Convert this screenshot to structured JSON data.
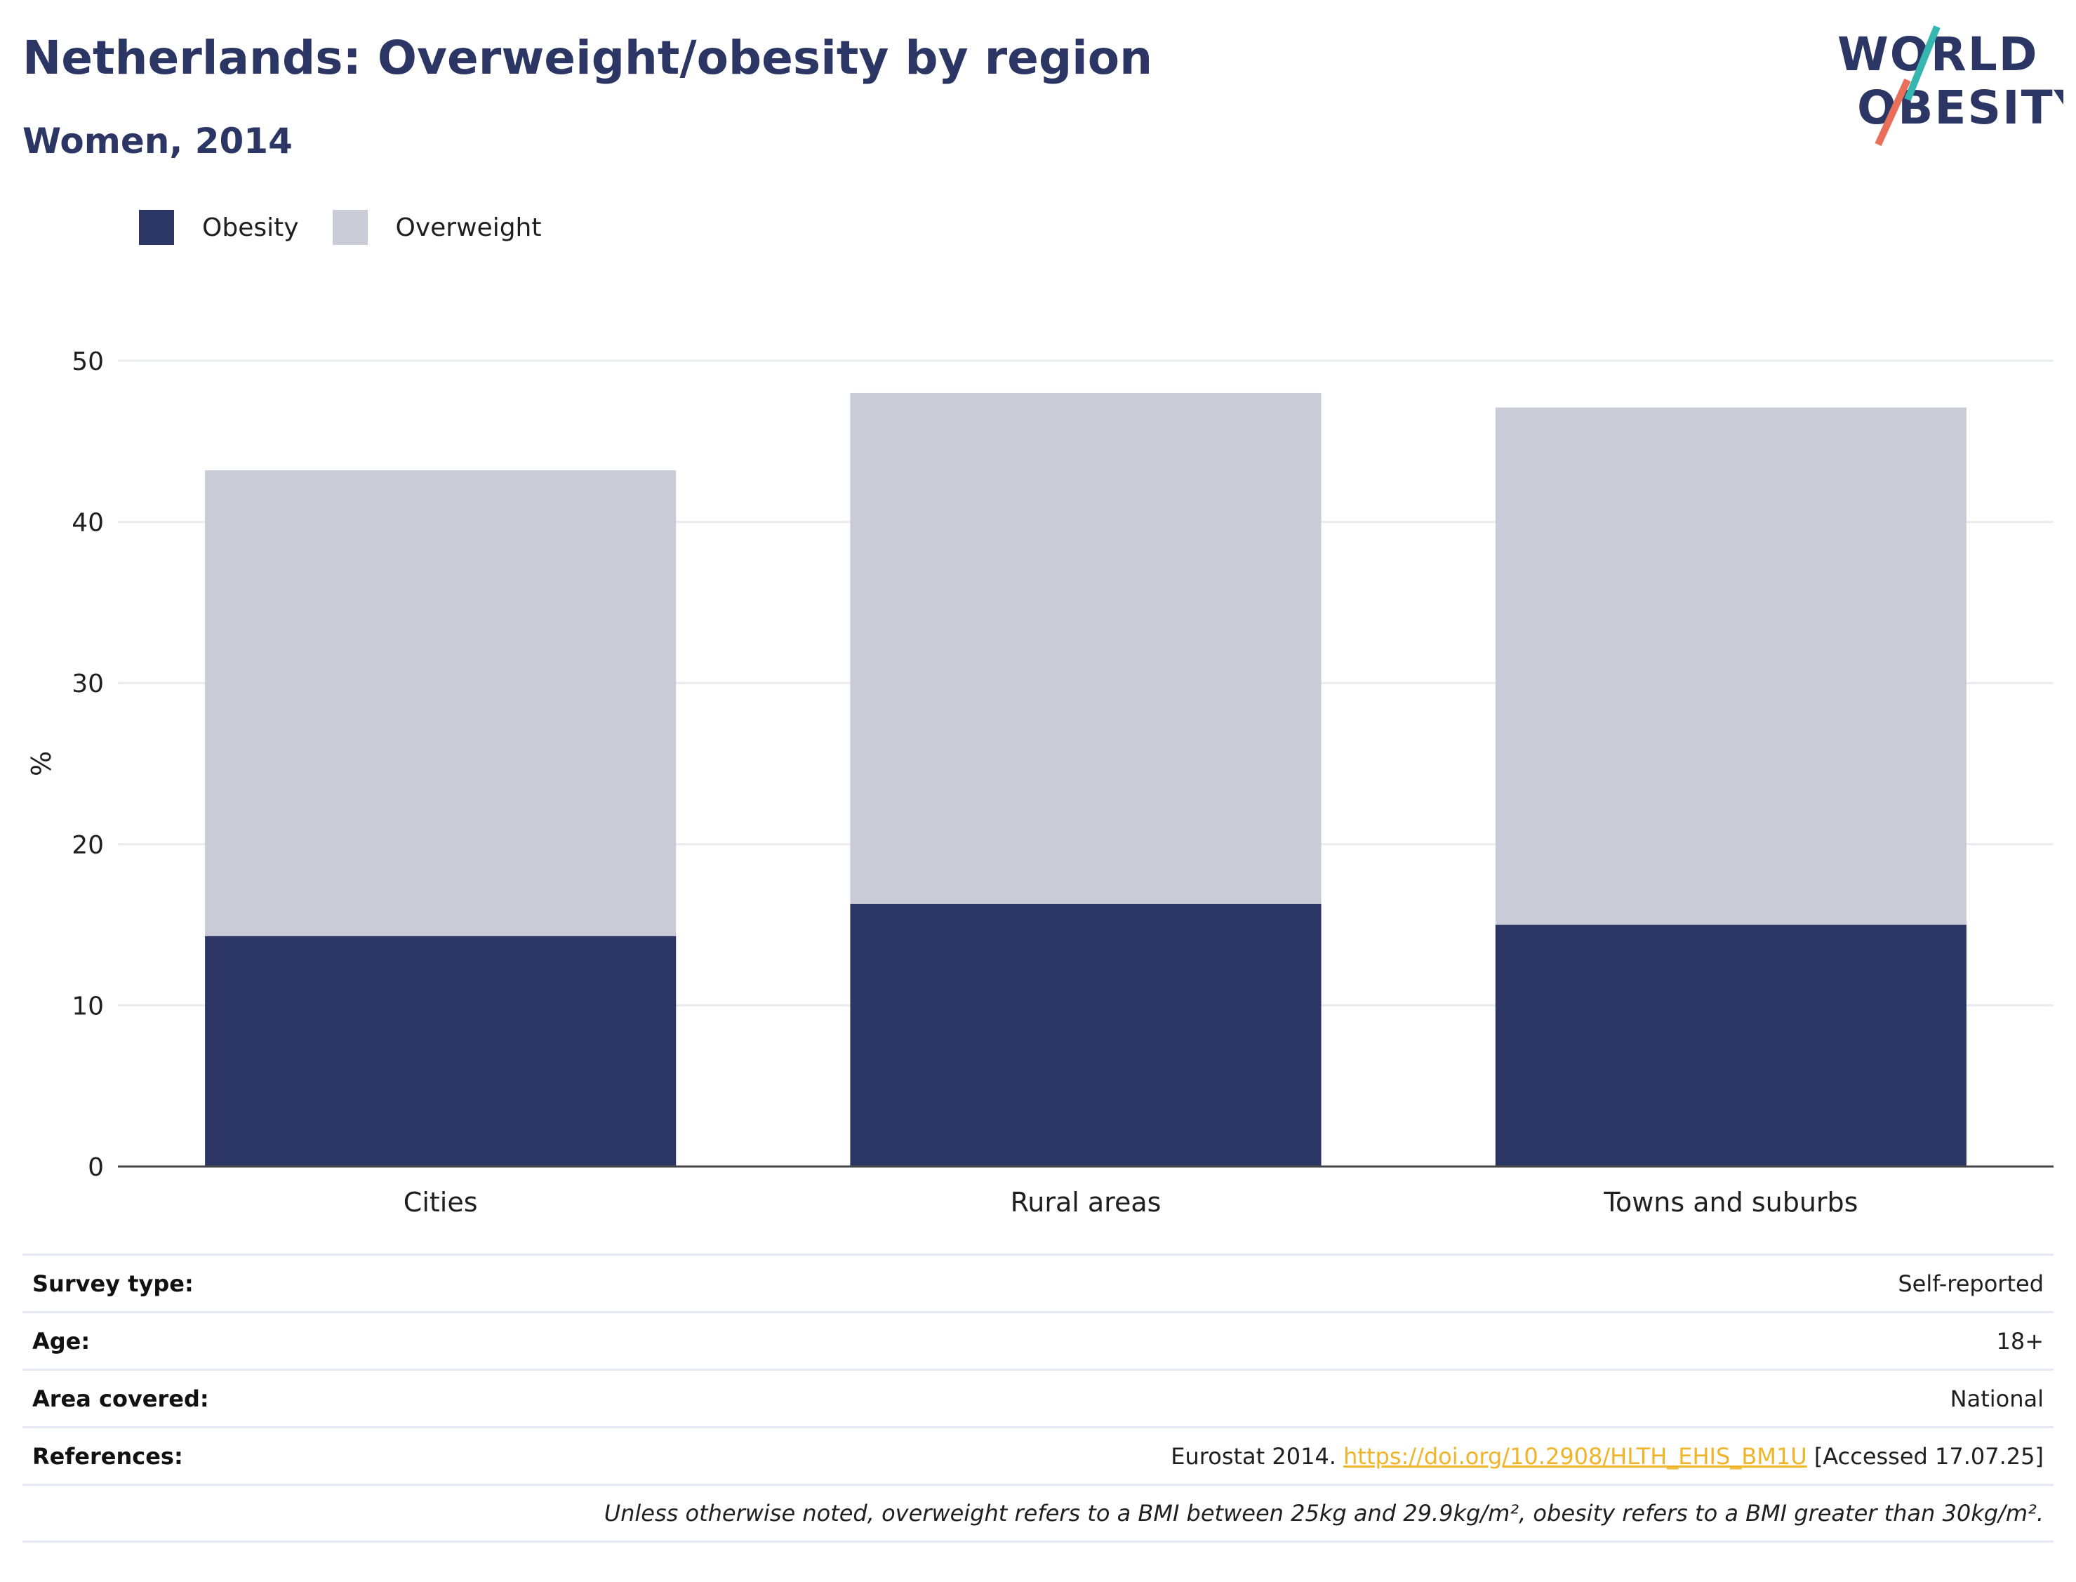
{
  "title": "Netherlands: Overweight/obesity by region",
  "subtitle": "Women, 2014",
  "logo": {
    "line1": "WORLD",
    "line2": "OBESITY"
  },
  "colors": {
    "obesity": "#2b3664",
    "overweight": "#c9cbd7",
    "title": "#2b3664",
    "link": "#f0b429",
    "logo_teal": "#36b6b0",
    "logo_coral": "#e8705a"
  },
  "legend": [
    {
      "label": "Obesity",
      "color": "#2b3664"
    },
    {
      "label": "Overweight",
      "color": "#c9cbd7"
    }
  ],
  "chart_data": {
    "type": "bar",
    "stacked": true,
    "categories": [
      "Cities",
      "Rural areas",
      "Towns and suburbs"
    ],
    "series": [
      {
        "name": "Obesity",
        "values": [
          14.3,
          16.3,
          15.0
        ],
        "color": "#2b3664"
      },
      {
        "name": "Overweight",
        "values": [
          28.9,
          31.7,
          32.1
        ],
        "color": "#c9cbd7"
      }
    ],
    "xlabel": "",
    "ylabel": "%",
    "ylim": [
      0,
      50
    ],
    "yticks": [
      "0",
      "10",
      "20",
      "30",
      "40",
      "50"
    ],
    "grid": true,
    "legend_position": "top-left"
  },
  "meta": {
    "survey_type": {
      "label": "Survey type:",
      "value": "Self-reported"
    },
    "age": {
      "label": "Age:",
      "value": "18+"
    },
    "area": {
      "label": "Area covered:",
      "value": "National"
    },
    "references": {
      "label": "References:",
      "prefix": "Eurostat 2014. ",
      "link_text": "https://doi.org/10.2908/HLTH_EHIS_BM1U",
      "suffix": " [Accessed 17.07.25]"
    },
    "note": "Unless otherwise noted, overweight refers to a BMI between 25kg and 29.9kg/m², obesity refers to a BMI greater than 30kg/m²."
  }
}
